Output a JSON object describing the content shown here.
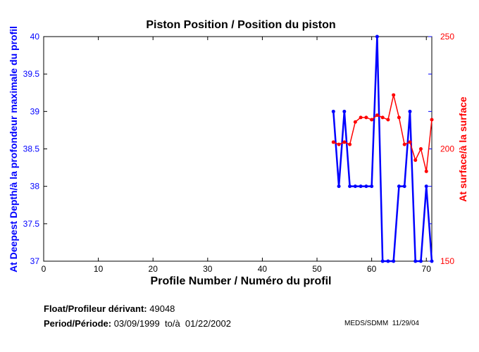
{
  "chart_data": {
    "type": "line",
    "title": "Piston Position / Position du piston",
    "xlabel": "Profile Number / Numéro du profil",
    "ylabel_left": "At Deepest Depth/à la profondeur maximale du profil",
    "ylabel_right": "At surface/à la surface",
    "xlim": [
      0,
      71
    ],
    "ylim_left": [
      37,
      40
    ],
    "ylim_right": [
      150,
      250
    ],
    "xticks": [
      0,
      10,
      20,
      30,
      40,
      50,
      60,
      70
    ],
    "yticks_left": [
      "37",
      "37.5",
      "38",
      "38.5",
      "39",
      "39.5",
      "40"
    ],
    "yticks_right": [
      "150",
      "200",
      "250"
    ],
    "x": [
      53,
      54,
      55,
      56,
      57,
      58,
      59,
      60,
      61,
      62,
      63,
      64,
      65,
      66,
      67,
      68,
      69,
      70,
      71
    ],
    "series": [
      {
        "name": "At Deepest Depth",
        "axis": "left",
        "color": "#0000ff",
        "values": [
          39,
          38,
          39,
          38,
          38,
          38,
          38,
          38,
          40,
          37,
          37,
          37,
          38,
          38,
          39,
          37,
          37,
          38,
          37
        ]
      },
      {
        "name": "At surface",
        "axis": "right",
        "color": "#ff0000",
        "values": [
          203,
          202,
          203,
          202,
          212,
          214,
          214,
          213,
          215,
          214,
          213,
          224,
          214,
          202,
          203,
          195,
          200,
          190,
          213
        ]
      }
    ]
  },
  "footer": {
    "float_label": "Float/Profileur dérivant:",
    "float_value": "49048",
    "period_label": "Period/Période:",
    "period_value": "03/09/1999  to/à  01/22/2002",
    "credit": "MEDS/SDMM  11/29/04"
  }
}
